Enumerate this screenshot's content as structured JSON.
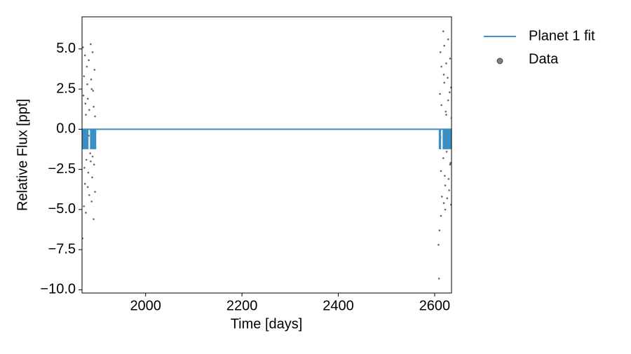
{
  "chart_data": {
    "type": "line",
    "xlabel": "Time [days]",
    "ylabel": "Relative Flux [ppt]",
    "xlim": [
      1868,
      2635
    ],
    "ylim": [
      -10.2,
      7.0
    ],
    "xticks": [
      2000,
      2200,
      2400,
      2600
    ],
    "yticks": [
      {
        "value": 5,
        "label": "5.0"
      },
      {
        "value": 2.5,
        "label": "2.5"
      },
      {
        "value": 0,
        "label": "0.0"
      },
      {
        "value": -2.5,
        "label": "−2.5"
      },
      {
        "value": -5,
        "label": "−5.0"
      },
      {
        "value": -7.5,
        "label": "−7.5"
      },
      {
        "value": -10,
        "label": "−10.0"
      }
    ],
    "legend": "outside right",
    "series": [
      {
        "name": "Planet 1 fit",
        "type": "line",
        "color": "#3a8fc4",
        "x": [
          1868,
          1870,
          1870,
          1872,
          1872,
          1874,
          1874,
          1876,
          1876,
          1878,
          1878,
          1880,
          1880,
          1882,
          1886,
          1886,
          1888,
          1888,
          1890,
          1890,
          1892,
          1892,
          1894,
          1894,
          1896,
          1896,
          2610,
          2610,
          2612,
          2612,
          2614,
          2618,
          2618,
          2620,
          2620,
          2622,
          2622,
          2624,
          2624,
          2626,
          2626,
          2628,
          2628,
          2630,
          2630,
          2632,
          2632,
          2634,
          2634,
          2635
        ],
        "values": [
          0,
          0,
          -1.2,
          -1.2,
          0,
          0,
          -1.2,
          -1.2,
          0,
          0,
          -1.2,
          -1.2,
          0,
          0,
          0,
          -1.2,
          -1.2,
          0,
          0,
          -1.2,
          -1.2,
          0,
          0,
          -1.2,
          -1.2,
          0,
          0,
          -1.2,
          -1.2,
          0,
          0,
          0,
          -1.2,
          -1.2,
          0,
          0,
          -1.2,
          -1.2,
          0,
          0,
          -1.2,
          -1.2,
          0,
          0,
          -1.2,
          -1.2,
          0,
          0,
          -1.2,
          -1.2
        ]
      },
      {
        "name": "Data",
        "type": "scatter",
        "color": "#000000",
        "x": [
          1870,
          1872,
          1874,
          1876,
          1878,
          1880,
          1882,
          1883,
          1886,
          1888,
          1890,
          1892,
          1894,
          1895,
          1869,
          1871,
          1873,
          1875,
          1877,
          1879,
          1881,
          1883,
          1885,
          1887,
          1889,
          1891,
          1893,
          1895,
          1870,
          1872,
          1874,
          1876,
          1878,
          1880,
          1882,
          1886,
          1888,
          1890,
          1892,
          1894,
          2608,
          2609,
          2610,
          2612,
          2613,
          2614,
          2615,
          2618,
          2619,
          2620,
          2622,
          2624,
          2626,
          2628,
          2630,
          2632,
          2634,
          2611,
          2613,
          2614,
          2618,
          2620,
          2621,
          2623,
          2625,
          2627,
          2629,
          2631,
          2633,
          2635,
          2612,
          2619,
          2622,
          2624,
          2626,
          2628,
          2630,
          2632,
          2634
        ],
        "values": [
          5.1,
          -4.8,
          4.6,
          -5.2,
          3.9,
          -3.6,
          4.3,
          -4.1,
          5.3,
          -4.5,
          4.8,
          -5.6,
          3.7,
          -3.9,
          -6.8,
          2.1,
          -2.4,
          1.6,
          -1.9,
          2.8,
          -2.7,
          1.2,
          -1.5,
          3.1,
          -3.0,
          2.4,
          -2.2,
          0.8,
          -0.6,
          3.3,
          -3.4,
          0.9,
          -1.1,
          1.9,
          -0.4,
          -2.0,
          2.5,
          -1.7,
          1.4,
          -0.9,
          -7.2,
          -9.3,
          -6.3,
          4.8,
          -5.4,
          3.9,
          -4.2,
          6.1,
          -4.6,
          5.2,
          -5.0,
          4.1,
          -4.3,
          5.6,
          -3.8,
          4.4,
          -4.7,
          2.2,
          -2.6,
          1.5,
          -1.8,
          2.9,
          -2.9,
          1.1,
          -1.4,
          3.2,
          -3.1,
          2.3,
          -2.1,
          0.7,
          -0.5,
          3.4,
          -3.5,
          0.9,
          -1.0,
          1.8,
          -0.3,
          -2.2,
          2.6
        ]
      }
    ]
  }
}
